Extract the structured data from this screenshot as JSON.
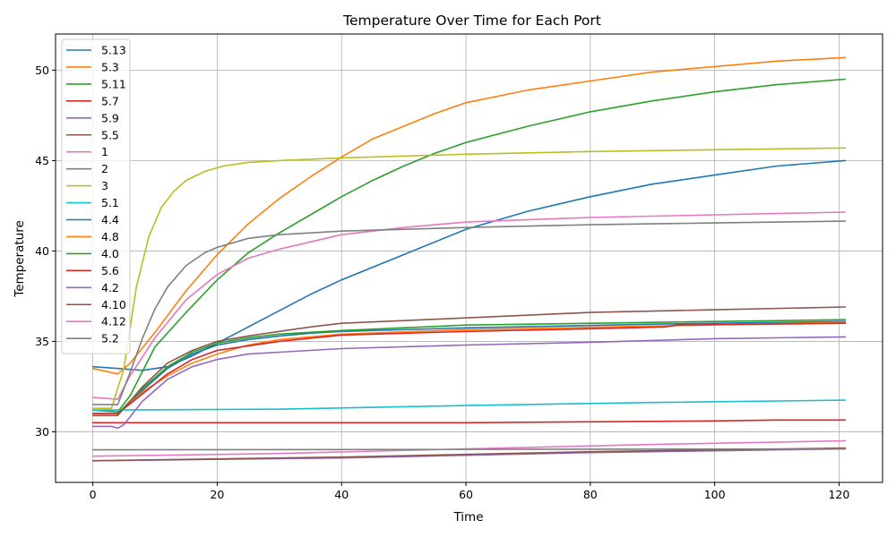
{
  "chart_data": {
    "type": "line",
    "title": "Temperature Over Time for Each Port",
    "xlabel": "Time",
    "ylabel": "Temperature",
    "xlim": [
      -6,
      127
    ],
    "ylim": [
      27.2,
      52
    ],
    "xticks": [
      0,
      20,
      40,
      60,
      80,
      100,
      120
    ],
    "yticks": [
      30,
      35,
      40,
      45,
      50
    ],
    "grid": true,
    "legend_position": "top-left",
    "series": [
      {
        "name": "5.13",
        "color": "#1f77b4",
        "x": [
          0,
          4,
          8,
          12,
          16,
          20,
          25,
          30,
          35,
          40,
          50,
          60,
          70,
          80,
          90,
          100,
          110,
          121
        ],
        "y": [
          33.6,
          33.5,
          33.4,
          33.6,
          34.2,
          34.9,
          35.8,
          36.7,
          37.6,
          38.4,
          39.8,
          41.2,
          42.2,
          43.0,
          43.7,
          44.2,
          44.7,
          45.0
        ]
      },
      {
        "name": "5.3",
        "color": "#ff7f0e",
        "x": [
          0,
          4,
          6,
          10,
          15,
          20,
          25,
          30,
          35,
          40,
          45,
          50,
          55,
          60,
          70,
          80,
          90,
          100,
          110,
          121
        ],
        "y": [
          33.5,
          33.2,
          33.8,
          35.5,
          37.8,
          39.8,
          41.5,
          42.9,
          44.1,
          45.2,
          46.2,
          46.9,
          47.6,
          48.2,
          48.9,
          49.4,
          49.9,
          50.2,
          50.5,
          50.7
        ]
      },
      {
        "name": "5.11",
        "color": "#2ca02c",
        "x": [
          0,
          4,
          6,
          10,
          15,
          20,
          25,
          30,
          35,
          40,
          45,
          50,
          55,
          60,
          70,
          80,
          90,
          100,
          110,
          121
        ],
        "y": [
          31.2,
          31.1,
          32.0,
          34.7,
          36.6,
          38.4,
          39.9,
          41.0,
          42.0,
          43.0,
          43.9,
          44.7,
          45.4,
          46.0,
          46.9,
          47.7,
          48.3,
          48.8,
          49.2,
          49.5
        ]
      },
      {
        "name": "5.7",
        "color": "#d62728",
        "x": [
          0,
          20,
          40,
          60,
          80,
          100,
          110,
          121
        ],
        "y": [
          30.5,
          30.5,
          30.5,
          30.5,
          30.55,
          30.6,
          30.65,
          30.65
        ]
      },
      {
        "name": "5.9",
        "color": "#9467bd",
        "x": [
          0,
          40,
          80,
          121
        ],
        "y": [
          28.4,
          28.55,
          28.85,
          29.05
        ]
      },
      {
        "name": "5.5",
        "color": "#8c564b",
        "x": [
          0,
          40,
          80,
          121
        ],
        "y": [
          28.4,
          28.6,
          28.9,
          29.1
        ]
      },
      {
        "name": "1",
        "color": "#e377c2",
        "x": [
          0,
          30,
          60,
          90,
          121
        ],
        "y": [
          28.65,
          28.8,
          29.05,
          29.3,
          29.5
        ]
      },
      {
        "name": "2",
        "color": "#7f7f7f",
        "x": [
          0,
          121
        ],
        "y": [
          29.0,
          29.05
        ]
      },
      {
        "name": "3",
        "color": "#bcbd22",
        "x": [
          0,
          3,
          5,
          7,
          9,
          11,
          13,
          15,
          18,
          21,
          25,
          30,
          40,
          60,
          80,
          100,
          121
        ],
        "y": [
          31.3,
          31.3,
          33.5,
          38.0,
          40.8,
          42.4,
          43.3,
          43.9,
          44.4,
          44.7,
          44.9,
          45.0,
          45.15,
          45.35,
          45.5,
          45.6,
          45.7
        ]
      },
      {
        "name": "5.1",
        "color": "#17becf",
        "x": [
          0,
          30,
          60,
          90,
          121
        ],
        "y": [
          31.2,
          31.25,
          31.45,
          31.62,
          31.75
        ]
      },
      {
        "name": "4.4",
        "color": "#1f77b4",
        "x": [
          0,
          4,
          8,
          12,
          16,
          20,
          25,
          30,
          35,
          40,
          60,
          90,
          121
        ],
        "y": [
          31.0,
          31.0,
          32.3,
          33.5,
          34.3,
          34.8,
          35.1,
          35.3,
          35.45,
          35.55,
          35.75,
          35.95,
          36.1
        ]
      },
      {
        "name": "4.8",
        "color": "#ff7f0e",
        "x": [
          0,
          4,
          8,
          12,
          16,
          20,
          25,
          30,
          40,
          60,
          90,
          121
        ],
        "y": [
          31.0,
          31.0,
          32.2,
          33.1,
          33.8,
          34.3,
          34.8,
          35.1,
          35.4,
          35.65,
          35.85,
          36.05
        ]
      },
      {
        "name": "4.0",
        "color": "#2ca02c",
        "x": [
          0,
          4,
          8,
          12,
          16,
          20,
          25,
          30,
          40,
          60,
          90,
          121
        ],
        "y": [
          31.0,
          31.0,
          32.4,
          33.6,
          34.4,
          34.9,
          35.2,
          35.4,
          35.6,
          35.9,
          36.05,
          36.2
        ]
      },
      {
        "name": "5.6",
        "color": "#d62728",
        "x": [
          0,
          4,
          8,
          12,
          16,
          20,
          30,
          40,
          60,
          80,
          92,
          94,
          121
        ],
        "y": [
          31.0,
          31.0,
          32.1,
          33.2,
          34.0,
          34.5,
          35.0,
          35.35,
          35.55,
          35.7,
          35.8,
          35.9,
          36.0
        ]
      },
      {
        "name": "4.2",
        "color": "#9467bd",
        "x": [
          0,
          3,
          4,
          5,
          8,
          12,
          16,
          20,
          25,
          30,
          40,
          60,
          80,
          90,
          100,
          121
        ],
        "y": [
          30.3,
          30.3,
          30.2,
          30.4,
          31.7,
          32.9,
          33.6,
          34.0,
          34.3,
          34.4,
          34.6,
          34.8,
          34.95,
          35.05,
          35.15,
          35.25
        ]
      },
      {
        "name": "4.10",
        "color": "#8c564b",
        "x": [
          0,
          4,
          8,
          12,
          16,
          20,
          25,
          30,
          35,
          40,
          60,
          80,
          100,
          121
        ],
        "y": [
          30.9,
          30.9,
          32.5,
          33.8,
          34.5,
          35.0,
          35.3,
          35.55,
          35.8,
          36.0,
          36.3,
          36.6,
          36.75,
          36.9
        ]
      },
      {
        "name": "4.12",
        "color": "#e377c2",
        "x": [
          0,
          4,
          6,
          10,
          15,
          20,
          25,
          30,
          35,
          40,
          50,
          60,
          80,
          100,
          121
        ],
        "y": [
          31.9,
          31.8,
          33.1,
          35.2,
          37.3,
          38.7,
          39.6,
          40.1,
          40.5,
          40.9,
          41.3,
          41.6,
          41.85,
          42.0,
          42.15
        ]
      },
      {
        "name": "5.2",
        "color": "#7f7f7f",
        "x": [
          0,
          4,
          6,
          8,
          10,
          12,
          15,
          18,
          20,
          25,
          30,
          40,
          60,
          80,
          100,
          121
        ],
        "y": [
          31.5,
          31.5,
          33.3,
          35.2,
          36.8,
          38.0,
          39.2,
          39.9,
          40.2,
          40.7,
          40.9,
          41.1,
          41.3,
          41.45,
          41.55,
          41.65
        ]
      }
    ]
  }
}
